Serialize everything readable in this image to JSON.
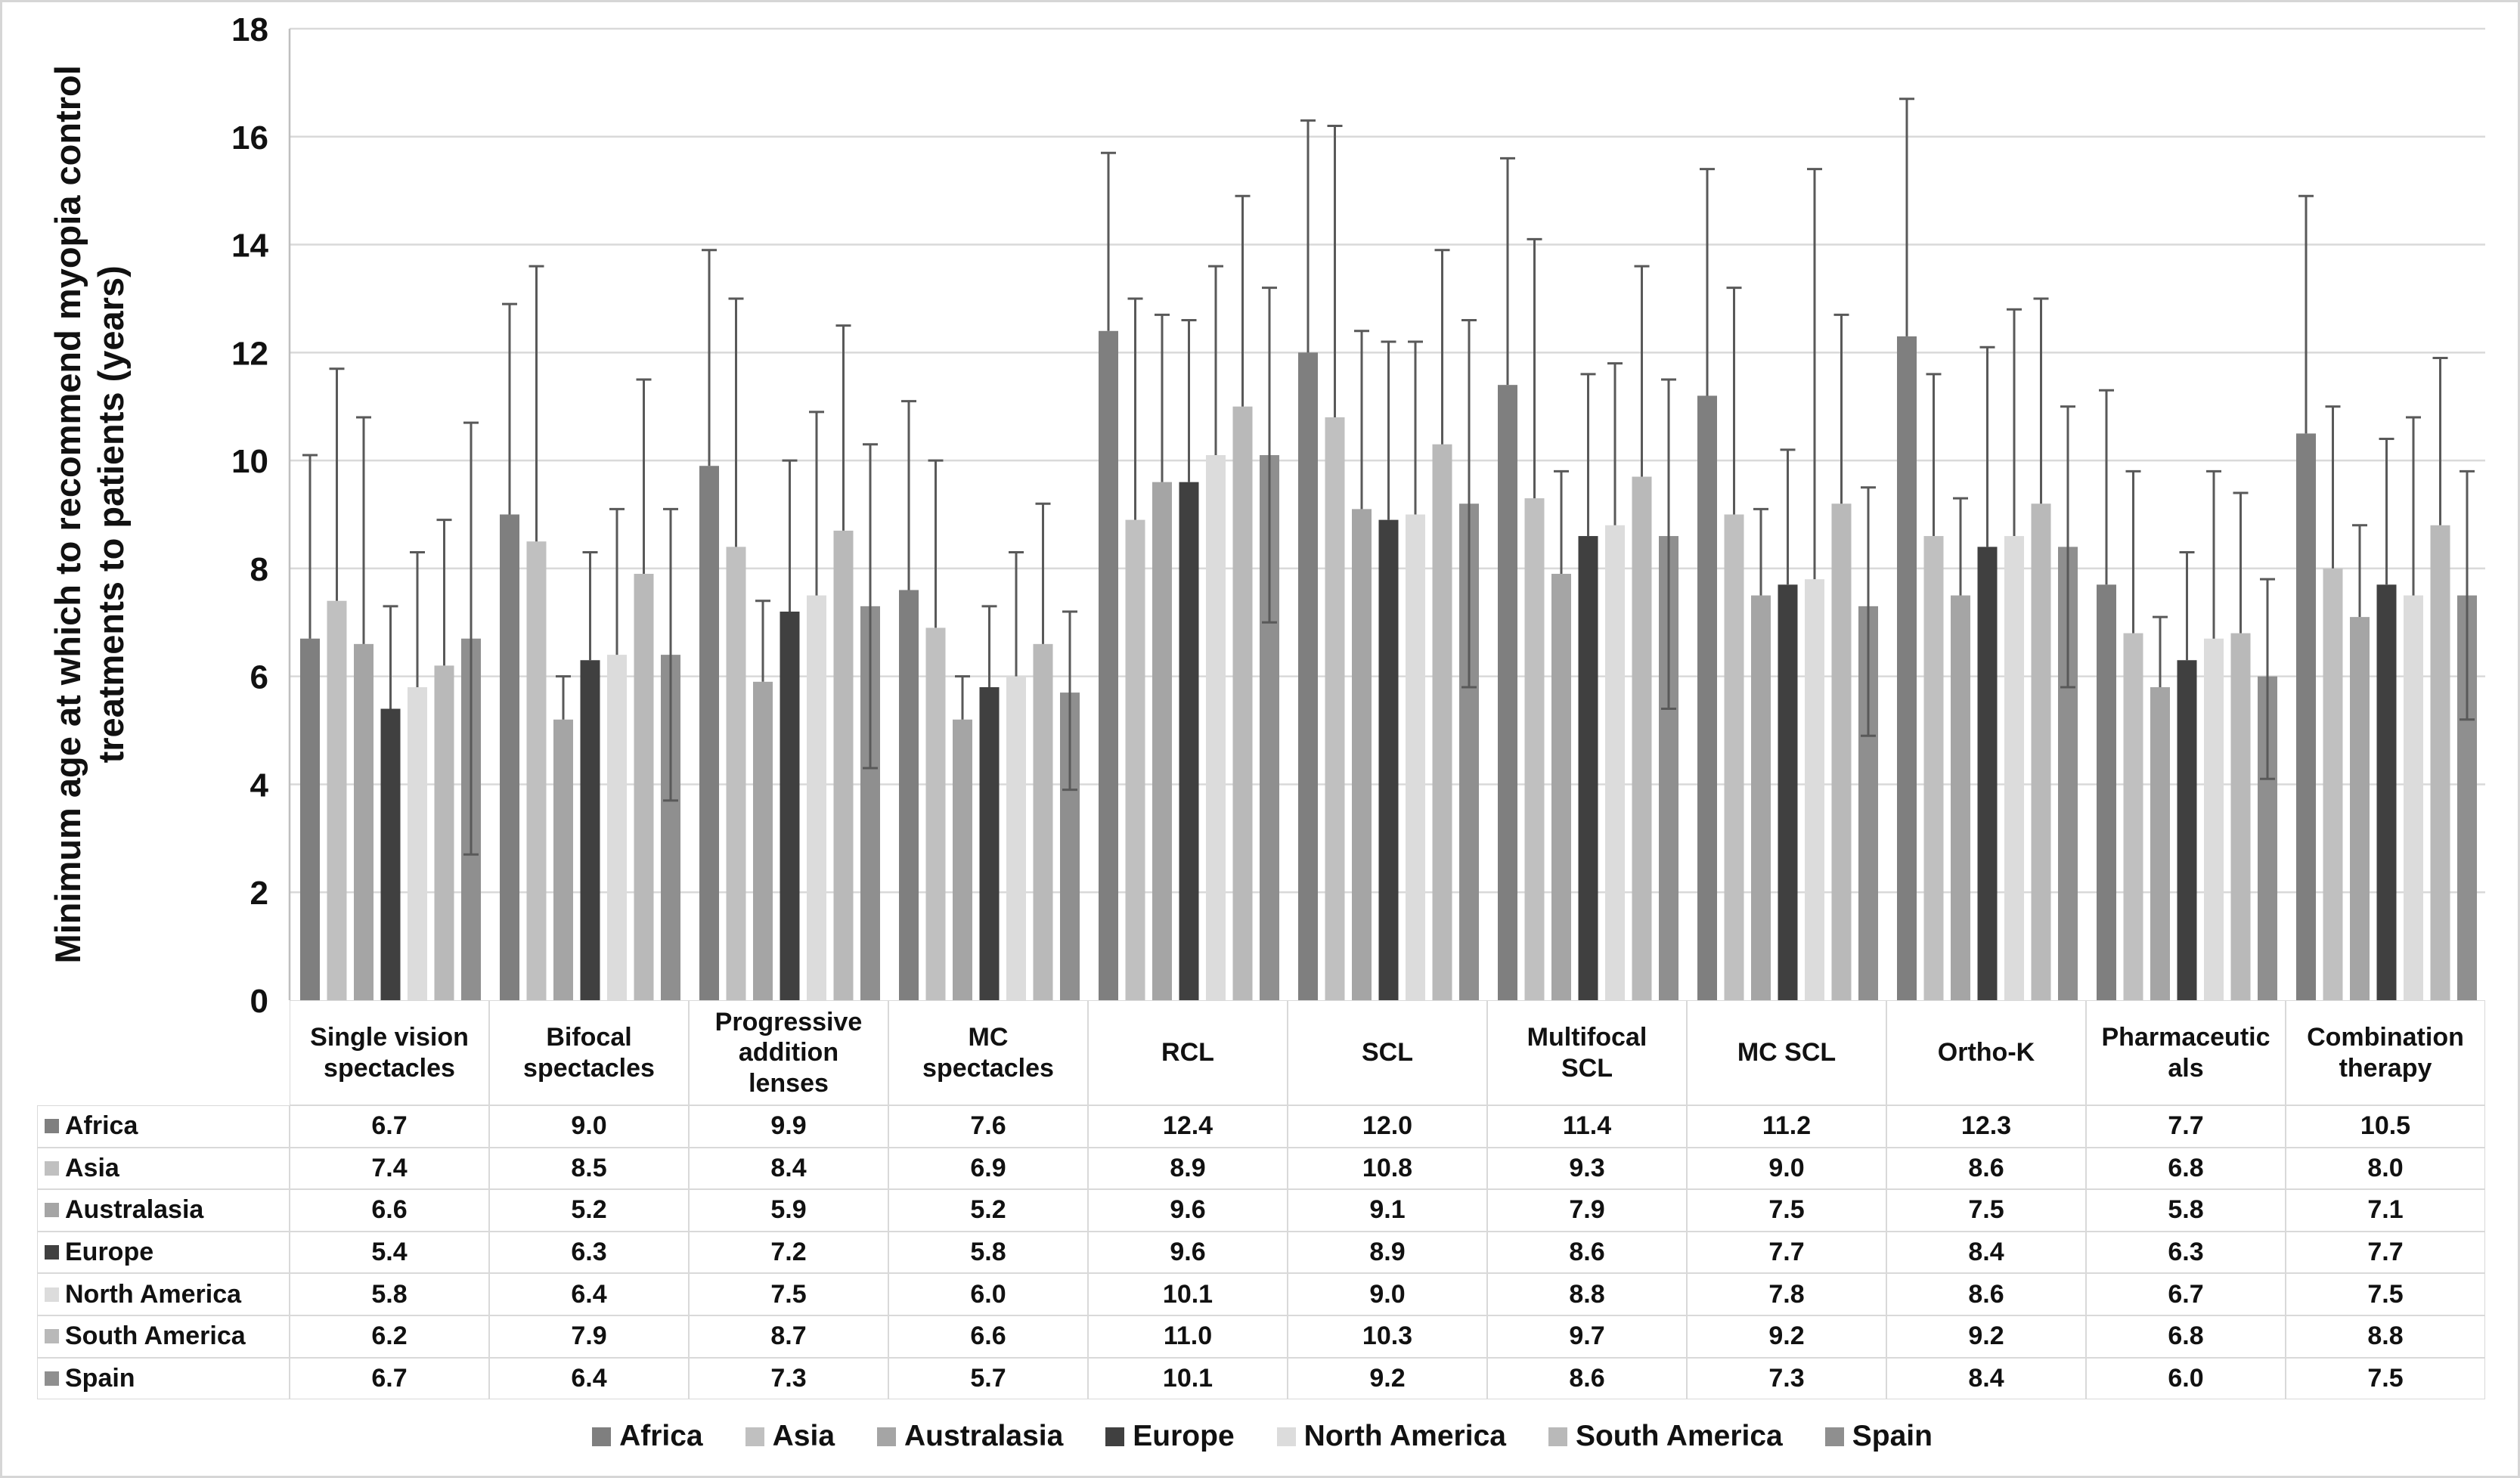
{
  "y_axis": {
    "title_line1": "Minimum age at which to recommend myopia control",
    "title_line2": "treatments to patients (years)",
    "tick_labels": [
      "0",
      "2",
      "4",
      "6",
      "8",
      "10",
      "12",
      "14",
      "16",
      "18"
    ]
  },
  "chart_data": {
    "type": "bar",
    "title": "",
    "xlabel": "",
    "ylabel": "Minimum age at which to recommend myopia control treatments to patients (years)",
    "ylim": [
      0,
      18
    ],
    "grid": true,
    "legend_position": "bottom",
    "categories": [
      {
        "label": "Single vision spectacles",
        "lines": [
          "Single vision",
          "spectacles"
        ]
      },
      {
        "label": "Bifocal spectacles",
        "lines": [
          "Bifocal",
          "spectacles"
        ]
      },
      {
        "label": "Progressive addition lenses",
        "lines": [
          "Progressive",
          "addition",
          "lenses"
        ]
      },
      {
        "label": "MC spectacles",
        "lines": [
          "MC",
          "spectacles"
        ]
      },
      {
        "label": "RCL",
        "lines": [
          "RCL"
        ]
      },
      {
        "label": "SCL",
        "lines": [
          "SCL"
        ]
      },
      {
        "label": "Multifocal SCL",
        "lines": [
          "Multifocal",
          "SCL"
        ]
      },
      {
        "label": "MC SCL",
        "lines": [
          "MC SCL"
        ]
      },
      {
        "label": "Ortho-K",
        "lines": [
          "Ortho-K"
        ]
      },
      {
        "label": "Pharmaceuticals",
        "lines": [
          "Pharmaceutic",
          "als"
        ]
      },
      {
        "label": "Combination therapy",
        "lines": [
          "Combination",
          "therapy"
        ]
      }
    ],
    "series": [
      {
        "name": "Africa",
        "color": "#7f7f7f",
        "values": [
          6.7,
          9.0,
          9.9,
          7.6,
          12.4,
          12.0,
          11.4,
          11.2,
          12.3,
          7.7,
          10.5
        ],
        "err_top": [
          10.1,
          12.9,
          13.9,
          11.1,
          15.7,
          16.3,
          15.6,
          15.4,
          16.7,
          11.3,
          14.9
        ]
      },
      {
        "name": "Asia",
        "color": "#c0c0c0",
        "values": [
          7.4,
          8.5,
          8.4,
          6.9,
          8.9,
          10.8,
          9.3,
          9.0,
          8.6,
          6.8,
          8.0
        ],
        "err_top": [
          11.7,
          13.6,
          13.0,
          10.0,
          13.0,
          16.2,
          14.1,
          13.2,
          11.6,
          9.8,
          11.0
        ]
      },
      {
        "name": "Australasia",
        "color": "#a5a5a5",
        "values": [
          6.6,
          5.2,
          5.9,
          5.2,
          9.6,
          9.1,
          7.9,
          7.5,
          7.5,
          5.8,
          7.1
        ],
        "err_top": [
          10.8,
          6.0,
          7.4,
          6.0,
          12.7,
          12.4,
          9.8,
          9.1,
          9.3,
          7.1,
          8.8
        ]
      },
      {
        "name": "Europe",
        "color": "#404040",
        "values": [
          5.4,
          6.3,
          7.2,
          5.8,
          9.6,
          8.9,
          8.6,
          7.7,
          8.4,
          6.3,
          7.7
        ],
        "err_top": [
          7.3,
          8.3,
          10.0,
          7.3,
          12.6,
          12.2,
          11.6,
          10.2,
          12.1,
          8.3,
          10.4
        ]
      },
      {
        "name": "North America",
        "color": "#dcdcdc",
        "values": [
          5.8,
          6.4,
          7.5,
          6.0,
          10.1,
          9.0,
          8.8,
          7.8,
          8.6,
          6.7,
          7.5
        ],
        "err_top": [
          8.3,
          9.1,
          10.9,
          8.3,
          13.6,
          12.2,
          11.8,
          15.4,
          12.8,
          9.8,
          10.8
        ]
      },
      {
        "name": "South America",
        "color": "#b9b9b9",
        "values": [
          6.2,
          7.9,
          8.7,
          6.6,
          11.0,
          10.3,
          9.7,
          9.2,
          9.2,
          6.8,
          8.8
        ],
        "err_top": [
          8.9,
          11.5,
          12.5,
          9.2,
          14.9,
          13.9,
          13.6,
          12.7,
          13.0,
          9.4,
          11.9
        ]
      },
      {
        "name": "Spain",
        "color": "#8f8f8f",
        "values": [
          6.7,
          6.4,
          7.3,
          5.7,
          10.1,
          9.2,
          8.6,
          7.3,
          8.4,
          6.0,
          7.5
        ],
        "err_top": [
          10.7,
          9.1,
          10.3,
          7.2,
          13.2,
          12.6,
          11.5,
          9.5,
          11.0,
          7.8,
          9.8
        ],
        "err_bottom": [
          2.7,
          3.7,
          4.3,
          3.9,
          7.0,
          5.8,
          5.4,
          4.9,
          5.8,
          4.1,
          5.2
        ]
      }
    ]
  },
  "colors": {
    "gridline": "#d9d9d9",
    "axis_line": "#bfbfbf",
    "error_bar": "#595959",
    "text": "#111111"
  }
}
